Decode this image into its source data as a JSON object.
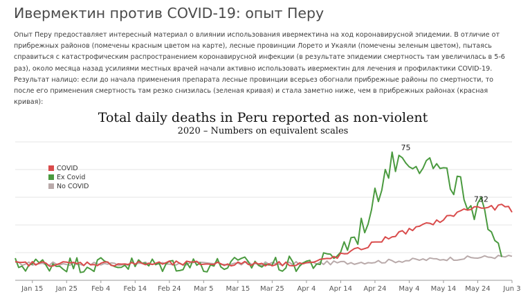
{
  "article": {
    "title": "Ивермектин против COVID-19: опыт Перу",
    "body": "Опыт Перу предоставляет интересный материал о влиянии использования ивермектина на ход коронавирусной эпидемии. В отличие от прибрежных районов (помечены красным цветом на карте), лесные провинции Лорето и Укаяли (помечены зеленым цветом), пытаясь справиться с катастрофическим распространением коронавирусной инфекции (в результате эпидемии смертность там увеличилась в 5-6 раз), около месяца назад усилиями местных врачей начали активно использовать ивермектин для лечения и профилактики COVID-19. Результат налицо: если до начала применения препарата лесные провинции всерьез обогнали прибрежные районы по смертности, то после его применения смертность там резко снизилась (зеленая кривая) и стала заметно ниже, чем в прибрежных районах (красная кривая):"
  },
  "chart_data": {
    "type": "line",
    "title": "Total daily deaths in Peru reported as non-violent",
    "subtitle": "2020 – Numbers on equivalent scales",
    "xlabel": "",
    "ylabel": "",
    "x_ticks": [
      "Jan 15",
      "Jan 25",
      "Feb 4",
      "Feb 14",
      "Feb 24",
      "Mar 5",
      "Mar 15",
      "Mar 25",
      "Apr 4",
      "Apr 14",
      "Apr 24",
      "May 4",
      "May 14",
      "May 24",
      "Jun 3"
    ],
    "x_start": "Jan 10",
    "x_range_days": [
      0,
      145
    ],
    "ylim": [
      0,
      1
    ],
    "grid": true,
    "legend_position": "top-left",
    "annotations": [
      {
        "text": "75",
        "series": "Ex Covid",
        "x_day": 114
      },
      {
        "text": "732",
        "series": "COVID",
        "x_day": 136
      }
    ],
    "series": [
      {
        "name": "COVID",
        "color": "#d94b4b",
        "values": [
          [
            0,
            0.12
          ],
          [
            10,
            0.12
          ],
          [
            20,
            0.122
          ],
          [
            30,
            0.12
          ],
          [
            40,
            0.12
          ],
          [
            50,
            0.122
          ],
          [
            60,
            0.12
          ],
          [
            70,
            0.12
          ],
          [
            80,
            0.12
          ],
          [
            86,
            0.125
          ],
          [
            90,
            0.145
          ],
          [
            95,
            0.18
          ],
          [
            100,
            0.22
          ],
          [
            105,
            0.27
          ],
          [
            110,
            0.32
          ],
          [
            115,
            0.36
          ],
          [
            120,
            0.4
          ],
          [
            125,
            0.44
          ],
          [
            130,
            0.5
          ],
          [
            135,
            0.53
          ],
          [
            140,
            0.52
          ],
          [
            142,
            0.54
          ],
          [
            145,
            0.51
          ]
        ]
      },
      {
        "name": "Ex Covid",
        "color": "#4a9a3f",
        "values": [
          [
            0,
            0.11
          ],
          [
            10,
            0.12
          ],
          [
            20,
            0.115
          ],
          [
            30,
            0.12
          ],
          [
            40,
            0.11
          ],
          [
            50,
            0.12
          ],
          [
            60,
            0.11
          ],
          [
            70,
            0.12
          ],
          [
            80,
            0.115
          ],
          [
            88,
            0.13
          ],
          [
            92,
            0.16
          ],
          [
            96,
            0.24
          ],
          [
            100,
            0.34
          ],
          [
            104,
            0.5
          ],
          [
            108,
            0.8
          ],
          [
            112,
            0.88
          ],
          [
            114,
            0.9
          ],
          [
            118,
            0.86
          ],
          [
            122,
            0.83
          ],
          [
            126,
            0.72
          ],
          [
            130,
            0.68
          ],
          [
            132,
            0.48
          ],
          [
            134,
            0.43
          ],
          [
            136,
            0.52
          ],
          [
            138,
            0.46
          ],
          [
            140,
            0.36
          ],
          [
            142,
            0.23
          ]
        ]
      },
      {
        "name": "No COVID",
        "color": "#b9aaaa",
        "values": [
          [
            0,
            0.12
          ],
          [
            20,
            0.12
          ],
          [
            40,
            0.12
          ],
          [
            60,
            0.12
          ],
          [
            80,
            0.12
          ],
          [
            100,
            0.13
          ],
          [
            110,
            0.14
          ],
          [
            120,
            0.15
          ],
          [
            130,
            0.16
          ],
          [
            140,
            0.17
          ],
          [
            145,
            0.17
          ]
        ]
      }
    ]
  }
}
